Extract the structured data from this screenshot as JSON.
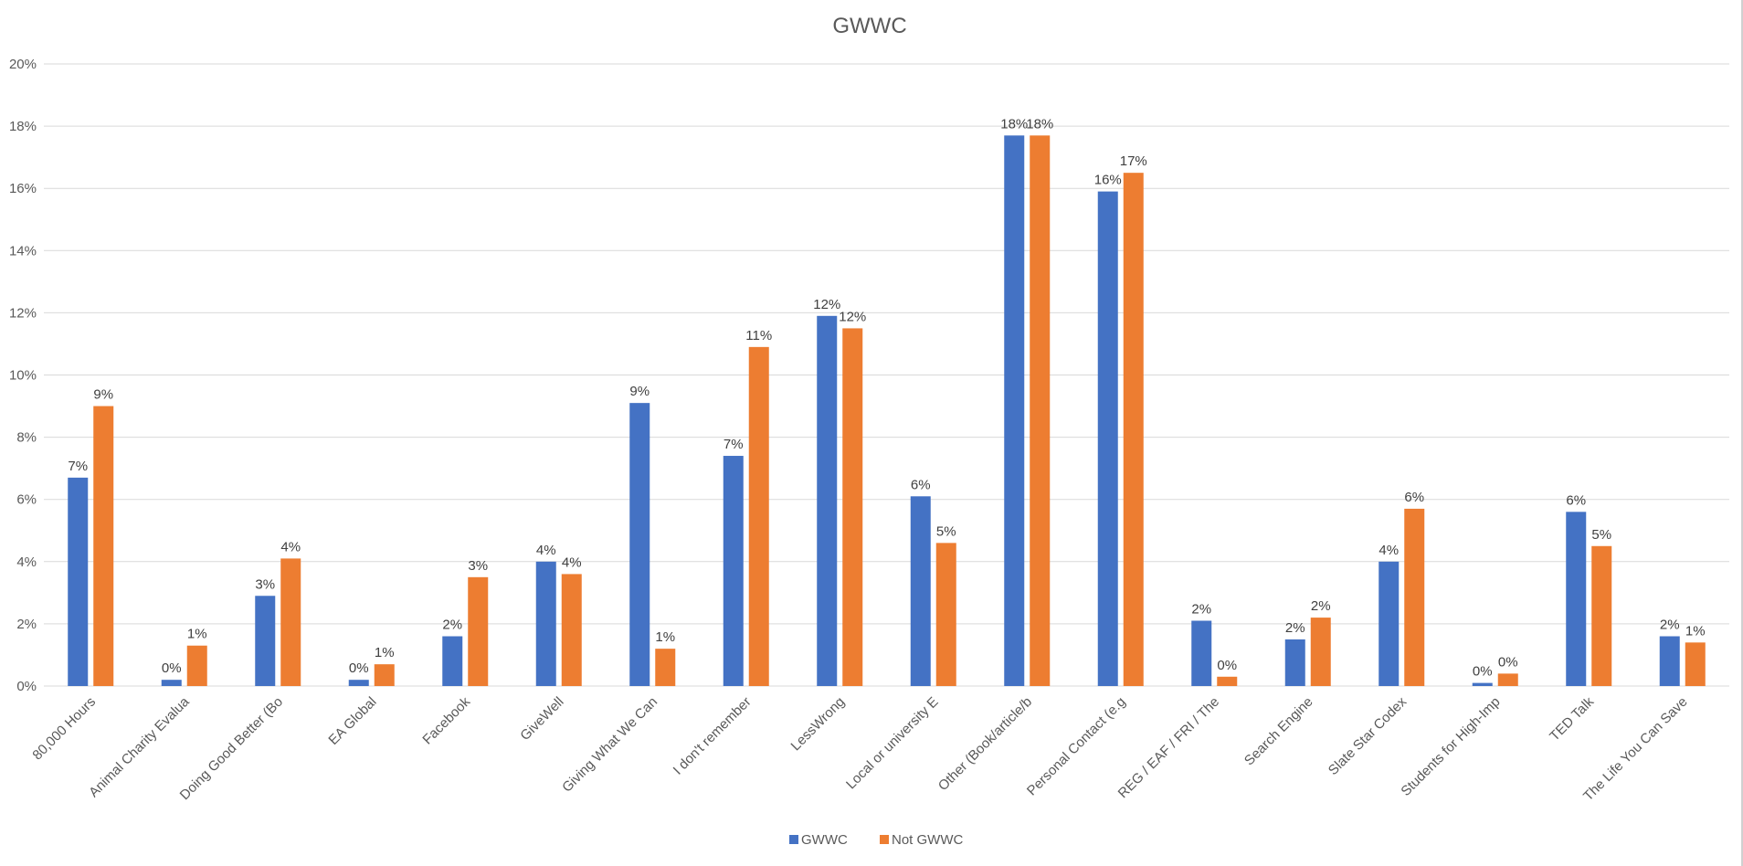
{
  "chart_data": {
    "type": "bar",
    "title": "GWWC",
    "xlabel": "",
    "ylabel": "",
    "ylim": [
      0,
      20
    ],
    "ytick_values": [
      0,
      2,
      4,
      6,
      8,
      10,
      12,
      14,
      16,
      18,
      20
    ],
    "ytick_labels": [
      "0%",
      "2%",
      "4%",
      "6%",
      "8%",
      "10%",
      "12%",
      "14%",
      "16%",
      "18%",
      "20%"
    ],
    "grid": true,
    "legend_position": "bottom",
    "categories": [
      "80,000 Hours",
      "Animal Charity Evalua",
      "Doing Good Better (Bo",
      "EA Global",
      "Facebook",
      "GiveWell",
      "Giving What We Can",
      "I don't remember",
      "LessWrong",
      "Local or university E",
      "Other (Book/article/b",
      "Personal Contact (e.g",
      "REG / EAF / FRI / The",
      "Search Engine",
      "Slate Star Codex",
      "Students for High-Imp",
      "TED Talk",
      "The Life You Can Save"
    ],
    "series": [
      {
        "name": "GWWC",
        "color": "#4472c4",
        "values": [
          6.7,
          0.2,
          2.9,
          0.2,
          1.6,
          4.0,
          9.1,
          7.4,
          11.9,
          6.1,
          17.7,
          15.9,
          2.1,
          1.5,
          4.0,
          0.1,
          5.6,
          1.6
        ],
        "labels": [
          "7%",
          "0%",
          "3%",
          "0%",
          "2%",
          "4%",
          "9%",
          "7%",
          "12%",
          "6%",
          "18%",
          "16%",
          "2%",
          "2%",
          "4%",
          "0%",
          "6%",
          "2%"
        ]
      },
      {
        "name": "Not GWWC",
        "color": "#ed7d31",
        "values": [
          9.0,
          1.3,
          4.1,
          0.7,
          3.5,
          3.6,
          1.2,
          10.9,
          11.5,
          4.6,
          17.7,
          16.5,
          0.3,
          2.2,
          5.7,
          0.4,
          4.5,
          1.4
        ],
        "labels": [
          "9%",
          "1%",
          "4%",
          "1%",
          "3%",
          "4%",
          "1%",
          "11%",
          "12%",
          "5%",
          "18%",
          "17%",
          "0%",
          "2%",
          "6%",
          "0%",
          "5%",
          "1%"
        ]
      }
    ]
  }
}
